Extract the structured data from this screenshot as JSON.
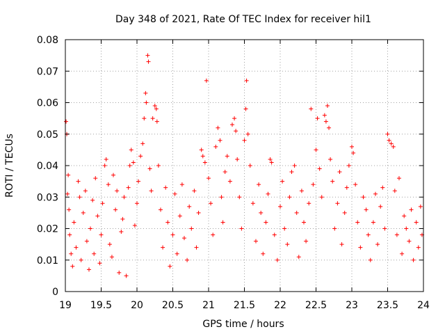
{
  "chart_data": {
    "type": "scatter",
    "title": "Day 348 of 2021, Rate Of TEC Index for receiver hil1",
    "xlabel": "GPS time / hours",
    "ylabel": "ROTI / TECUs",
    "xlim": [
      19,
      24
    ],
    "ylim": [
      0,
      0.08
    ],
    "x_ticks": [
      "19",
      "19.5",
      "20",
      "20.5",
      "21",
      "21.5",
      "22",
      "22.5",
      "23",
      "23.5",
      "24"
    ],
    "y_ticks": [
      "0",
      "0.01",
      "0.02",
      "0.03",
      "0.04",
      "0.05",
      "0.06",
      "0.07",
      "0.08"
    ],
    "grid": true,
    "marker": "+",
    "color": "#ff0000",
    "series": [
      {
        "name": "ROTI",
        "points": [
          [
            19.01,
            0.054
          ],
          [
            19.02,
            0.05
          ],
          [
            19.03,
            0.031
          ],
          [
            19.04,
            0.037
          ],
          [
            19.05,
            0.026
          ],
          [
            19.06,
            0.018
          ],
          [
            19.08,
            0.012
          ],
          [
            19.1,
            0.008
          ],
          [
            19.12,
            0.022
          ],
          [
            19.15,
            0.014
          ],
          [
            19.18,
            0.035
          ],
          [
            19.2,
            0.03
          ],
          [
            19.22,
            0.01
          ],
          [
            19.25,
            0.025
          ],
          [
            19.28,
            0.032
          ],
          [
            19.3,
            0.016
          ],
          [
            19.33,
            0.007
          ],
          [
            19.35,
            0.02
          ],
          [
            19.38,
            0.029
          ],
          [
            19.4,
            0.012
          ],
          [
            19.42,
            0.036
          ],
          [
            19.45,
            0.024
          ],
          [
            19.48,
            0.009
          ],
          [
            19.5,
            0.018
          ],
          [
            19.52,
            0.028
          ],
          [
            19.55,
            0.04
          ],
          [
            19.57,
            0.042
          ],
          [
            19.6,
            0.034
          ],
          [
            19.62,
            0.015
          ],
          [
            19.65,
            0.011
          ],
          [
            19.67,
            0.037
          ],
          [
            19.7,
            0.026
          ],
          [
            19.72,
            0.032
          ],
          [
            19.75,
            0.006
          ],
          [
            19.78,
            0.019
          ],
          [
            19.8,
            0.023
          ],
          [
            19.82,
            0.03
          ],
          [
            19.85,
            0.005
          ],
          [
            19.88,
            0.033
          ],
          [
            19.9,
            0.04
          ],
          [
            19.92,
            0.045
          ],
          [
            19.95,
            0.041
          ],
          [
            19.97,
            0.021
          ],
          [
            20.0,
            0.028
          ],
          [
            20.02,
            0.035
          ],
          [
            20.05,
            0.043
          ],
          [
            20.08,
            0.047
          ],
          [
            20.1,
            0.055
          ],
          [
            20.12,
            0.063
          ],
          [
            20.13,
            0.06
          ],
          [
            20.15,
            0.075
          ],
          [
            20.16,
            0.073
          ],
          [
            20.18,
            0.039
          ],
          [
            20.2,
            0.032
          ],
          [
            20.22,
            0.055
          ],
          [
            20.25,
            0.059
          ],
          [
            20.27,
            0.058
          ],
          [
            20.28,
            0.054
          ],
          [
            20.3,
            0.04
          ],
          [
            20.33,
            0.026
          ],
          [
            20.36,
            0.014
          ],
          [
            20.4,
            0.033
          ],
          [
            20.43,
            0.022
          ],
          [
            20.46,
            0.008
          ],
          [
            20.5,
            0.018
          ],
          [
            20.53,
            0.031
          ],
          [
            20.56,
            0.012
          ],
          [
            20.6,
            0.024
          ],
          [
            20.63,
            0.034
          ],
          [
            20.66,
            0.017
          ],
          [
            20.7,
            0.01
          ],
          [
            20.73,
            0.027
          ],
          [
            20.76,
            0.02
          ],
          [
            20.8,
            0.032
          ],
          [
            20.83,
            0.014
          ],
          [
            20.86,
            0.025
          ],
          [
            20.9,
            0.045
          ],
          [
            20.92,
            0.043
          ],
          [
            20.95,
            0.041
          ],
          [
            20.97,
            0.067
          ],
          [
            21.0,
            0.036
          ],
          [
            21.03,
            0.028
          ],
          [
            21.06,
            0.018
          ],
          [
            21.1,
            0.046
          ],
          [
            21.13,
            0.052
          ],
          [
            21.16,
            0.048
          ],
          [
            21.18,
            0.03
          ],
          [
            21.2,
            0.022
          ],
          [
            21.23,
            0.038
          ],
          [
            21.26,
            0.043
          ],
          [
            21.3,
            0.035
          ],
          [
            21.33,
            0.053
          ],
          [
            21.36,
            0.055
          ],
          [
            21.38,
            0.051
          ],
          [
            21.4,
            0.042
          ],
          [
            21.43,
            0.03
          ],
          [
            21.46,
            0.02
          ],
          [
            21.5,
            0.048
          ],
          [
            21.52,
            0.058
          ],
          [
            21.53,
            0.067
          ],
          [
            21.55,
            0.05
          ],
          [
            21.58,
            0.04
          ],
          [
            21.62,
            0.028
          ],
          [
            21.66,
            0.016
          ],
          [
            21.7,
            0.034
          ],
          [
            21.73,
            0.025
          ],
          [
            21.76,
            0.012
          ],
          [
            21.8,
            0.022
          ],
          [
            21.83,
            0.031
          ],
          [
            21.86,
            0.042
          ],
          [
            21.88,
            0.041
          ],
          [
            21.92,
            0.018
          ],
          [
            21.96,
            0.01
          ],
          [
            22.0,
            0.027
          ],
          [
            22.03,
            0.035
          ],
          [
            22.06,
            0.02
          ],
          [
            22.1,
            0.015
          ],
          [
            22.13,
            0.03
          ],
          [
            22.16,
            0.038
          ],
          [
            22.2,
            0.04
          ],
          [
            22.23,
            0.025
          ],
          [
            22.26,
            0.011
          ],
          [
            22.3,
            0.032
          ],
          [
            22.33,
            0.022
          ],
          [
            22.36,
            0.016
          ],
          [
            22.4,
            0.028
          ],
          [
            22.43,
            0.058
          ],
          [
            22.46,
            0.034
          ],
          [
            22.5,
            0.045
          ],
          [
            22.52,
            0.055
          ],
          [
            22.55,
            0.039
          ],
          [
            22.58,
            0.03
          ],
          [
            22.62,
            0.056
          ],
          [
            22.64,
            0.054
          ],
          [
            22.66,
            0.059
          ],
          [
            22.68,
            0.052
          ],
          [
            22.7,
            0.042
          ],
          [
            22.73,
            0.035
          ],
          [
            22.76,
            0.02
          ],
          [
            22.8,
            0.028
          ],
          [
            22.83,
            0.038
          ],
          [
            22.86,
            0.015
          ],
          [
            22.9,
            0.025
          ],
          [
            22.93,
            0.033
          ],
          [
            22.96,
            0.04
          ],
          [
            23.0,
            0.046
          ],
          [
            23.02,
            0.044
          ],
          [
            23.05,
            0.034
          ],
          [
            23.08,
            0.022
          ],
          [
            23.12,
            0.014
          ],
          [
            23.16,
            0.03
          ],
          [
            23.2,
            0.026
          ],
          [
            23.23,
            0.018
          ],
          [
            23.26,
            0.01
          ],
          [
            23.3,
            0.022
          ],
          [
            23.33,
            0.031
          ],
          [
            23.36,
            0.015
          ],
          [
            23.4,
            0.027
          ],
          [
            23.43,
            0.033
          ],
          [
            23.46,
            0.02
          ],
          [
            23.5,
            0.05
          ],
          [
            23.52,
            0.048
          ],
          [
            23.55,
            0.047
          ],
          [
            23.58,
            0.046
          ],
          [
            23.6,
            0.032
          ],
          [
            23.63,
            0.018
          ],
          [
            23.66,
            0.036
          ],
          [
            23.7,
            0.012
          ],
          [
            23.73,
            0.024
          ],
          [
            23.76,
            0.02
          ],
          [
            23.8,
            0.016
          ],
          [
            23.83,
            0.026
          ],
          [
            23.86,
            0.01
          ],
          [
            23.9,
            0.022
          ],
          [
            23.93,
            0.014
          ],
          [
            23.96,
            0.027
          ],
          [
            23.98,
            0.018
          ]
        ]
      }
    ]
  }
}
